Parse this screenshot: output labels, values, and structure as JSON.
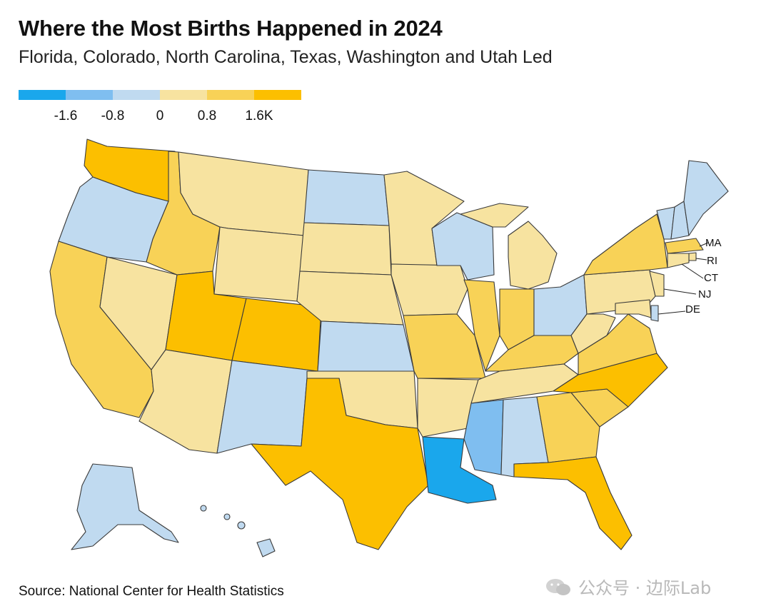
{
  "header": {
    "title": "Where the Most Births Happened in 2024",
    "subtitle": "Florida, Colorado, North Carolina, Texas, Washington and Utah Led"
  },
  "legend": {
    "colors": [
      "#1aa7ec",
      "#7fbef0",
      "#c0daf0",
      "#f7e3a0",
      "#f8d257",
      "#fcbf00"
    ],
    "ticks": [
      "-1.6",
      "-0.8",
      "0",
      "0.8",
      "1.6K"
    ]
  },
  "map_data": {
    "palette": {
      "neg_high": "#1aa7ec",
      "neg_mid": "#7fbef0",
      "neg_low": "#c0daf0",
      "pos_low": "#f7e3a0",
      "pos_mid": "#f8d257",
      "pos_high": "#fcbf00"
    },
    "states": [
      {
        "abbr": "WA",
        "bin": "pos_high"
      },
      {
        "abbr": "OR",
        "bin": "neg_low"
      },
      {
        "abbr": "CA",
        "bin": "pos_mid"
      },
      {
        "abbr": "NV",
        "bin": "pos_low"
      },
      {
        "abbr": "ID",
        "bin": "pos_mid"
      },
      {
        "abbr": "MT",
        "bin": "pos_low"
      },
      {
        "abbr": "WY",
        "bin": "pos_low"
      },
      {
        "abbr": "UT",
        "bin": "pos_high"
      },
      {
        "abbr": "CO",
        "bin": "pos_high"
      },
      {
        "abbr": "AZ",
        "bin": "pos_low"
      },
      {
        "abbr": "NM",
        "bin": "neg_low"
      },
      {
        "abbr": "ND",
        "bin": "neg_low"
      },
      {
        "abbr": "SD",
        "bin": "pos_low"
      },
      {
        "abbr": "NE",
        "bin": "pos_low"
      },
      {
        "abbr": "KS",
        "bin": "neg_low"
      },
      {
        "abbr": "OK",
        "bin": "pos_low"
      },
      {
        "abbr": "TX",
        "bin": "pos_high"
      },
      {
        "abbr": "MN",
        "bin": "pos_low"
      },
      {
        "abbr": "IA",
        "bin": "pos_low"
      },
      {
        "abbr": "MO",
        "bin": "pos_mid"
      },
      {
        "abbr": "AR",
        "bin": "pos_low"
      },
      {
        "abbr": "LA",
        "bin": "neg_high"
      },
      {
        "abbr": "WI",
        "bin": "neg_low"
      },
      {
        "abbr": "IL",
        "bin": "pos_mid"
      },
      {
        "abbr": "MI",
        "bin": "pos_low"
      },
      {
        "abbr": "IN",
        "bin": "pos_mid"
      },
      {
        "abbr": "OH",
        "bin": "neg_low"
      },
      {
        "abbr": "KY",
        "bin": "pos_mid"
      },
      {
        "abbr": "TN",
        "bin": "pos_low"
      },
      {
        "abbr": "MS",
        "bin": "neg_mid"
      },
      {
        "abbr": "AL",
        "bin": "neg_low"
      },
      {
        "abbr": "GA",
        "bin": "pos_mid"
      },
      {
        "abbr": "FL",
        "bin": "pos_high"
      },
      {
        "abbr": "SC",
        "bin": "pos_mid"
      },
      {
        "abbr": "NC",
        "bin": "pos_high"
      },
      {
        "abbr": "VA",
        "bin": "pos_mid"
      },
      {
        "abbr": "WV",
        "bin": "pos_low"
      },
      {
        "abbr": "PA",
        "bin": "pos_low"
      },
      {
        "abbr": "NY",
        "bin": "pos_mid"
      },
      {
        "abbr": "VT",
        "bin": "neg_low"
      },
      {
        "abbr": "NH",
        "bin": "neg_low"
      },
      {
        "abbr": "ME",
        "bin": "neg_low"
      },
      {
        "abbr": "MA",
        "bin": "pos_mid"
      },
      {
        "abbr": "RI",
        "bin": "pos_low"
      },
      {
        "abbr": "CT",
        "bin": "pos_low"
      },
      {
        "abbr": "NJ",
        "bin": "pos_low"
      },
      {
        "abbr": "DE",
        "bin": "neg_low"
      },
      {
        "abbr": "MD",
        "bin": "pos_low"
      },
      {
        "abbr": "AK",
        "bin": "neg_low"
      },
      {
        "abbr": "HI",
        "bin": "neg_low"
      }
    ],
    "callouts": {
      "MA": "MA",
      "RI": "RI",
      "CT": "CT",
      "NJ": "NJ",
      "DE": "DE"
    }
  },
  "footer": {
    "source": "Source: National Center for Health Statistics",
    "watermark": "公众号 · 边际Lab"
  }
}
